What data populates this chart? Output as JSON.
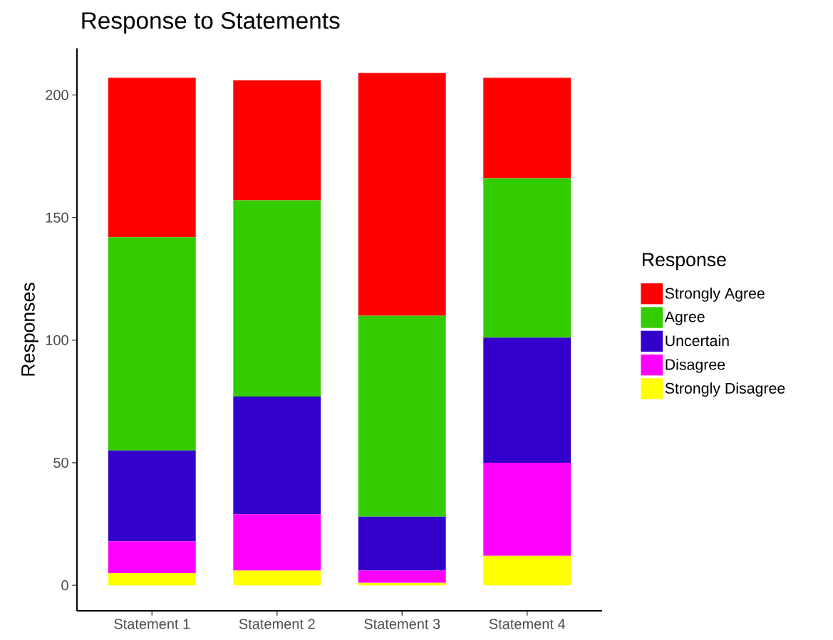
{
  "chart_data": {
    "type": "bar",
    "stacked": true,
    "title": "Response to Statements",
    "ylabel": "Responses",
    "legend_title": "Response",
    "legend": "right",
    "categories": [
      "Statement 1",
      "Statement 2",
      "Statement 3",
      "Statement 4"
    ],
    "series": [
      {
        "name": "Strongly Disagree",
        "color": "#ffff00",
        "values": [
          5,
          6,
          1,
          12
        ]
      },
      {
        "name": "Disagree",
        "color": "#ff00ff",
        "values": [
          13,
          23,
          5,
          38
        ]
      },
      {
        "name": "Uncertain",
        "color": "#3300cc",
        "values": [
          37,
          48,
          22,
          51
        ]
      },
      {
        "name": "Agree",
        "color": "#33cc00",
        "values": [
          87,
          80,
          82,
          65
        ]
      },
      {
        "name": "Strongly Agree",
        "color": "#ff0000",
        "values": [
          65,
          49,
          99,
          41
        ]
      }
    ],
    "ylim": [
      -10.4,
      219
    ],
    "yticks": [
      0,
      50,
      100,
      150,
      200
    ],
    "grid": false
  }
}
